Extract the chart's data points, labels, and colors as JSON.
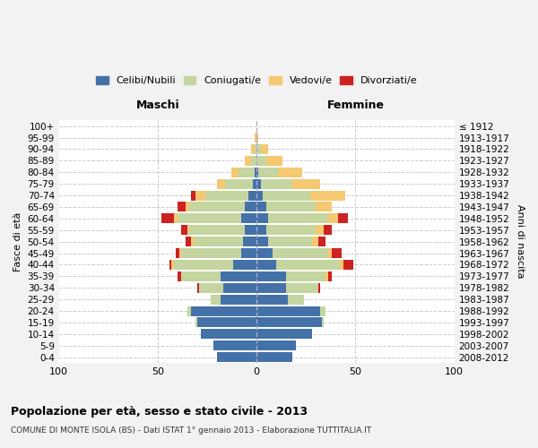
{
  "age_groups": [
    "0-4",
    "5-9",
    "10-14",
    "15-19",
    "20-24",
    "25-29",
    "30-34",
    "35-39",
    "40-44",
    "45-49",
    "50-54",
    "55-59",
    "60-64",
    "65-69",
    "70-74",
    "75-79",
    "80-84",
    "85-89",
    "90-94",
    "95-99",
    "100+"
  ],
  "birth_years": [
    "2008-2012",
    "2003-2007",
    "1998-2002",
    "1993-1997",
    "1988-1992",
    "1983-1987",
    "1978-1982",
    "1973-1977",
    "1968-1972",
    "1963-1967",
    "1958-1962",
    "1953-1957",
    "1948-1952",
    "1943-1947",
    "1938-1942",
    "1933-1937",
    "1928-1932",
    "1923-1927",
    "1918-1922",
    "1913-1917",
    "≤ 1912"
  ],
  "colors": {
    "celibi": "#4472a8",
    "coniugati": "#c5d5a0",
    "vedovi": "#f5c872",
    "divorziati": "#cc2222"
  },
  "male": {
    "celibi": [
      20,
      22,
      28,
      30,
      33,
      18,
      17,
      18,
      12,
      8,
      7,
      6,
      8,
      6,
      4,
      2,
      1,
      0,
      0,
      0,
      0
    ],
    "coniugati": [
      0,
      0,
      0,
      1,
      2,
      5,
      12,
      20,
      30,
      30,
      25,
      28,
      32,
      28,
      22,
      14,
      8,
      3,
      1,
      0,
      0
    ],
    "vedovi": [
      0,
      0,
      0,
      0,
      0,
      0,
      0,
      0,
      1,
      1,
      1,
      1,
      2,
      2,
      5,
      4,
      4,
      3,
      2,
      1,
      0
    ],
    "divorziati": [
      0,
      0,
      0,
      0,
      0,
      0,
      1,
      2,
      1,
      2,
      3,
      3,
      6,
      4,
      2,
      0,
      0,
      0,
      0,
      0,
      0
    ]
  },
  "female": {
    "celibi": [
      18,
      20,
      28,
      33,
      32,
      16,
      15,
      15,
      10,
      8,
      6,
      5,
      6,
      5,
      3,
      2,
      1,
      0,
      0,
      0,
      0
    ],
    "coniugati": [
      0,
      0,
      0,
      1,
      3,
      8,
      16,
      20,
      32,
      28,
      22,
      25,
      30,
      25,
      24,
      16,
      10,
      5,
      2,
      0,
      0
    ],
    "vedovi": [
      0,
      0,
      0,
      0,
      0,
      0,
      0,
      1,
      2,
      2,
      3,
      4,
      5,
      8,
      18,
      14,
      12,
      8,
      4,
      1,
      0
    ],
    "divorziati": [
      0,
      0,
      0,
      0,
      0,
      0,
      1,
      2,
      5,
      5,
      4,
      4,
      5,
      0,
      0,
      0,
      0,
      0,
      0,
      0,
      0
    ]
  },
  "xlim": [
    -100,
    100
  ],
  "xticks": [
    -100,
    -50,
    0,
    50,
    100
  ],
  "xticklabels": [
    "100",
    "50",
    "0",
    "50",
    "100"
  ],
  "title": "Popolazione per età, sesso e stato civile - 2013",
  "subtitle": "COMUNE DI MONTE ISOLA (BS) - Dati ISTAT 1° gennaio 2013 - Elaborazione TUTTITALIA.IT",
  "ylabel_left": "Fasce di età",
  "ylabel_right": "Anni di nascita",
  "label_maschi": "Maschi",
  "label_femmine": "Femmine",
  "legend_labels": [
    "Celibi/Nubili",
    "Coniugati/e",
    "Vedovi/e",
    "Divorziati/e"
  ],
  "background_color": "#f2f2f2",
  "plot_background": "#ffffff",
  "bar_height": 0.85
}
